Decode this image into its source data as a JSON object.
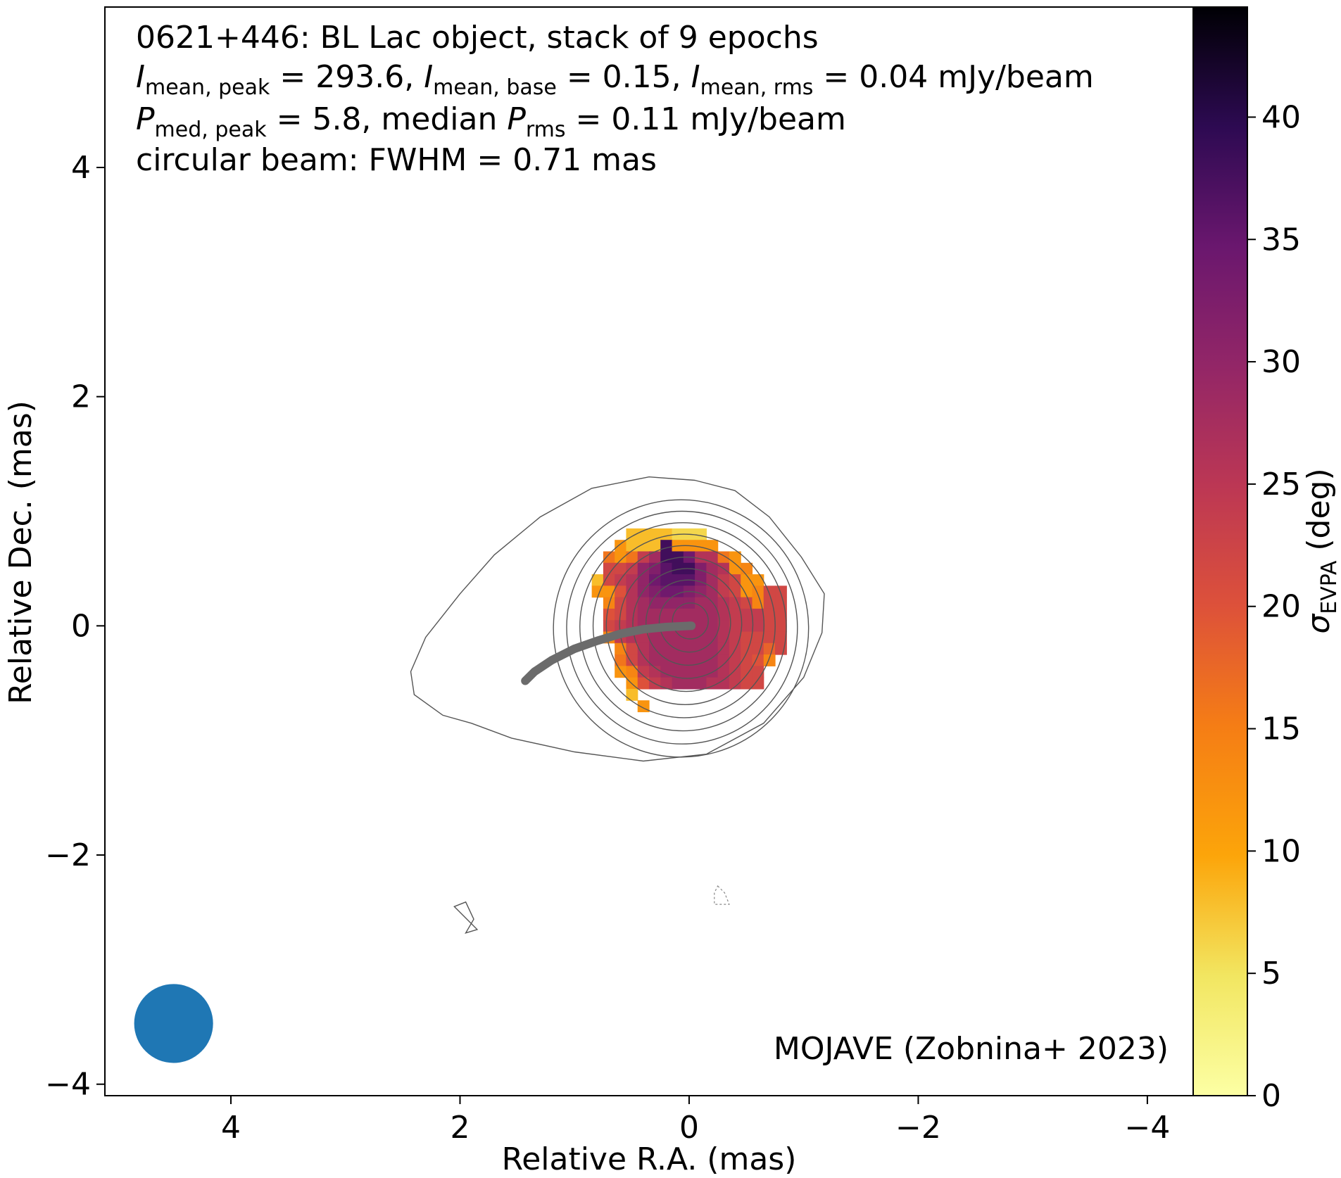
{
  "chart_data": {
    "type": "heatmap",
    "header": {
      "line1": "0621+446: BL Lac object, stack of 9 epochs",
      "line2": {
        "i_mean_peak_label": "I",
        "i_mean_peak_sub": "mean, peak",
        "i_mean_peak_val": " = 293.6, ",
        "i_mean_base_label": "I",
        "i_mean_base_sub": "mean, base",
        "i_mean_base_val": " = 0.15, ",
        "i_mean_rms_label": "I",
        "i_mean_rms_sub": "mean, rms",
        "i_mean_rms_val": " = 0.04 mJy/beam"
      },
      "line3": {
        "p_med_peak_label": "P",
        "p_med_peak_sub": "med, peak",
        "p_med_peak_val": " = 5.8, median ",
        "p_rms_label": "P",
        "p_rms_sub": "rms",
        "p_rms_val": " = 0.11 mJy/beam"
      },
      "line4": "circular beam: FWHM = 0.71 mas"
    },
    "credit": "MOJAVE (Zobnina+ 2023)",
    "xlabel": "Relative R.A. (mas)",
    "ylabel": "Relative Dec. (mas)",
    "xlim": [
      5.1,
      -4.4
    ],
    "ylim": [
      -4.1,
      5.4
    ],
    "xticks": [
      4,
      2,
      0,
      -2,
      -4
    ],
    "xtick_labels": [
      "4",
      "2",
      "0",
      "−2",
      "−4"
    ],
    "yticks": [
      4,
      2,
      0,
      -2,
      -4
    ],
    "ytick_labels": [
      "4",
      "2",
      "0",
      "−2",
      "−4"
    ],
    "colorbar": {
      "label_symbol": "σ",
      "label_sub": "EVPA",
      "label_unit": " (deg)",
      "range": [
        0,
        44.5
      ],
      "ticks": [
        0,
        5,
        10,
        15,
        20,
        25,
        30,
        35,
        40
      ],
      "tick_labels": [
        "0",
        "5",
        "10",
        "15",
        "20",
        "25",
        "30",
        "35",
        "40"
      ],
      "colormap": "inferno_r"
    },
    "beam": {
      "fwhm_mas": 0.71,
      "center": [
        4.5,
        -3.47
      ],
      "color": "#1f77b4"
    },
    "contour_color": "#555555",
    "ridge_color": "#6b6b6b",
    "ridgeline": [
      [
        0.0,
        0.0
      ],
      [
        -0.02,
        0.0
      ],
      [
        0.2,
        -0.01
      ],
      [
        0.4,
        -0.03
      ],
      [
        0.6,
        -0.07
      ],
      [
        0.8,
        -0.13
      ],
      [
        1.0,
        -0.2
      ],
      [
        1.2,
        -0.3
      ],
      [
        1.35,
        -0.4
      ],
      [
        1.43,
        -0.48
      ]
    ],
    "contours": {
      "positive_levels": 11,
      "outer": [
        [
          -0.05,
          1.27
        ],
        [
          -0.4,
          1.18
        ],
        [
          -0.7,
          0.95
        ],
        [
          -0.98,
          0.6
        ],
        [
          -1.18,
          0.28
        ],
        [
          -1.16,
          -0.06
        ],
        [
          -1.0,
          -0.45
        ],
        [
          -0.65,
          -0.85
        ],
        [
          -0.15,
          -1.12
        ],
        [
          0.4,
          -1.18
        ],
        [
          1.0,
          -1.1
        ],
        [
          1.55,
          -0.98
        ],
        [
          1.9,
          -0.85
        ],
        [
          2.15,
          -0.78
        ],
        [
          2.4,
          -0.6
        ],
        [
          2.43,
          -0.4
        ],
        [
          2.3,
          -0.1
        ],
        [
          2.0,
          0.28
        ],
        [
          1.7,
          0.62
        ],
        [
          1.3,
          0.95
        ],
        [
          0.85,
          1.2
        ],
        [
          0.35,
          1.3
        ]
      ],
      "island_positive": [
        [
          2.05,
          -2.45
        ],
        [
          1.95,
          -2.41
        ],
        [
          1.88,
          -2.56
        ],
        [
          1.95,
          -2.68
        ],
        [
          1.85,
          -2.65
        ]
      ],
      "island_negative": [
        [
          -0.25,
          -2.27
        ],
        [
          -0.31,
          -2.33
        ],
        [
          -0.35,
          -2.43
        ],
        [
          -0.22,
          -2.43
        ],
        [
          -0.22,
          -2.33
        ]
      ]
    },
    "pixel_size_mas": 0.1,
    "pixel_rows": [
      {
        "dec": 0.8,
        "x0": 0.5,
        "values": [
          8,
          8,
          8,
          8,
          6,
          6,
          6
        ]
      },
      {
        "dec": 0.7,
        "x0": 0.6,
        "values": [
          12,
          8,
          8,
          8,
          38,
          12,
          12,
          12,
          12
        ]
      },
      {
        "dec": 0.6,
        "x0": 0.7,
        "values": [
          16,
          12,
          16,
          24,
          28,
          38,
          38,
          34,
          26,
          26,
          16,
          12
        ]
      },
      {
        "dec": 0.5,
        "x0": 0.7,
        "values": [
          22,
          22,
          24,
          30,
          32,
          36,
          38,
          38,
          32,
          28,
          26,
          12,
          14
        ]
      },
      {
        "dec": 0.4,
        "x0": 0.8,
        "values": [
          8,
          22,
          24,
          26,
          30,
          34,
          36,
          36,
          36,
          32,
          28,
          24,
          22,
          12,
          12
        ]
      },
      {
        "dec": 0.3,
        "x0": 0.8,
        "values": [
          12,
          12,
          20,
          26,
          30,
          32,
          34,
          34,
          32,
          30,
          28,
          24,
          22,
          12,
          14,
          22,
          22
        ]
      },
      {
        "dec": 0.2,
        "x0": 0.7,
        "values": [
          14,
          22,
          26,
          28,
          30,
          30,
          30,
          30,
          28,
          28,
          26,
          24,
          22,
          14,
          22,
          22
        ]
      },
      {
        "dec": 0.1,
        "x0": 0.7,
        "values": [
          20,
          22,
          26,
          28,
          28,
          28,
          28,
          28,
          28,
          28,
          26,
          24,
          24,
          24,
          22,
          22
        ]
      },
      {
        "dec": 0.0,
        "x0": 0.7,
        "values": [
          22,
          24,
          26,
          28,
          28,
          28,
          28,
          28,
          28,
          28,
          26,
          24,
          24,
          24,
          22,
          22
        ]
      },
      {
        "dec": -0.1,
        "x0": 0.7,
        "values": [
          14,
          24,
          26,
          26,
          28,
          28,
          28,
          28,
          28,
          28,
          26,
          24,
          22,
          22,
          22,
          22
        ]
      },
      {
        "dec": -0.2,
        "x0": 0.6,
        "values": [
          14,
          22,
          26,
          28,
          28,
          28,
          28,
          28,
          28,
          26,
          24,
          22,
          22,
          18,
          22
        ]
      },
      {
        "dec": -0.3,
        "x0": 0.6,
        "values": [
          16,
          22,
          26,
          28,
          28,
          28,
          28,
          28,
          28,
          26,
          24,
          22,
          20,
          14
        ]
      },
      {
        "dec": -0.4,
        "x0": 0.6,
        "values": [
          12,
          14,
          24,
          26,
          28,
          28,
          28,
          28,
          28,
          26,
          24,
          22,
          22
        ]
      },
      {
        "dec": -0.5,
        "x0": 0.5,
        "values": [
          12,
          20,
          24,
          26,
          28,
          28,
          28,
          26,
          26,
          24,
          22,
          22
        ]
      },
      {
        "dec": -0.6,
        "x0": 0.5,
        "values": [
          8
        ]
      },
      {
        "dec": -0.7,
        "x0": 0.4,
        "values": [
          12
        ]
      }
    ]
  }
}
